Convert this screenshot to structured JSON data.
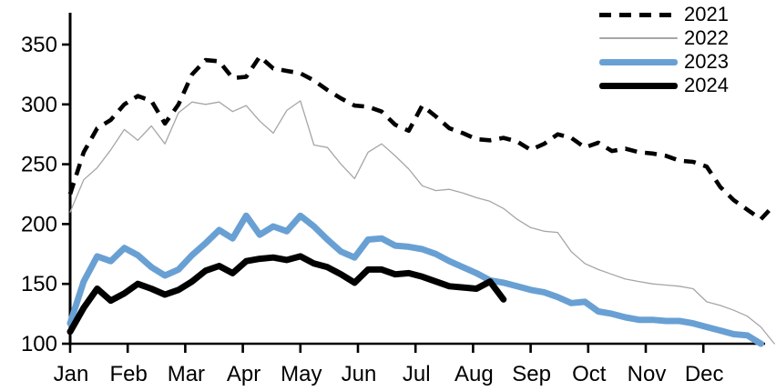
{
  "chart_data": {
    "type": "line",
    "title": "",
    "xlabel": "",
    "ylabel": "",
    "grid": false,
    "legend_position": "top-right",
    "x_axis": {
      "unit": "week-of-year",
      "tick_labels": [
        "Jan",
        "Feb",
        "Mar",
        "Apr",
        "May",
        "Jun",
        "Jul",
        "Aug",
        "Sep",
        "Oct",
        "Nov",
        "Dec"
      ]
    },
    "y_axis": {
      "ticks": [
        100,
        150,
        200,
        250,
        300,
        350
      ],
      "tick_labels": [
        "100",
        "150",
        "200",
        "250",
        "300",
        "350"
      ],
      "range": [
        100,
        365
      ]
    },
    "series": [
      {
        "name": "2021",
        "color": "#000000",
        "style": "dashed",
        "width": 4.6,
        "values": [
          225,
          260,
          280,
          287,
          300,
          307,
          303,
          284,
          300,
          325,
          337,
          336,
          322,
          323,
          340,
          330,
          328,
          326,
          320,
          312,
          305,
          299,
          298,
          294,
          283,
          278,
          299,
          290,
          280,
          276,
          271,
          270,
          272,
          269,
          262,
          267,
          275,
          272,
          264,
          268,
          261,
          263,
          260,
          259,
          257,
          253,
          252,
          248,
          231,
          220,
          212,
          204,
          216
        ]
      },
      {
        "name": "2022",
        "color": "#a6a6a6",
        "style": "solid",
        "width": 1.3,
        "values": [
          210,
          237,
          247,
          262,
          279,
          270,
          282,
          267,
          293,
          302,
          300,
          302,
          294,
          299,
          286,
          276,
          295,
          303,
          266,
          264,
          250,
          238,
          260,
          267,
          257,
          246,
          232,
          228,
          229,
          226,
          222,
          219,
          213,
          204,
          197,
          194,
          193,
          177,
          167,
          162,
          158,
          154,
          152,
          150,
          149,
          148,
          146,
          135,
          132,
          128,
          123,
          114,
          100
        ]
      },
      {
        "name": "2023",
        "color": "#69a0d4",
        "style": "solid",
        "width": 7,
        "values": [
          117,
          152,
          173,
          169,
          180,
          174,
          164,
          157,
          162,
          174,
          184,
          195,
          188,
          207,
          191,
          198,
          194,
          207,
          198,
          187,
          177,
          172,
          187,
          188,
          182,
          181,
          179,
          175,
          169,
          164,
          159,
          153,
          151,
          148,
          145,
          143,
          139,
          134,
          135,
          127,
          125,
          122,
          120,
          120,
          119,
          119,
          117,
          114,
          111,
          108,
          107,
          100
        ]
      },
      {
        "name": "2024",
        "color": "#000000",
        "style": "solid",
        "width": 7,
        "values": [
          110,
          130,
          146,
          136,
          142,
          150,
          146,
          141,
          145,
          152,
          161,
          165,
          159,
          169,
          171,
          172,
          170,
          173,
          167,
          164,
          158,
          151,
          162,
          162,
          158,
          159,
          156,
          152,
          148,
          147,
          146,
          152,
          137
        ]
      }
    ]
  }
}
